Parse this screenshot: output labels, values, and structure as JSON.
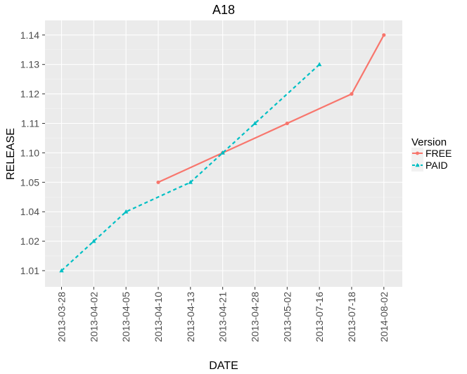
{
  "chart_data": {
    "type": "line",
    "title": "A18",
    "xlabel": "DATE",
    "ylabel": "RELEASE",
    "categories": [
      "2013-03-28",
      "2013-04-02",
      "2013-04-05",
      "2013-04-10",
      "2013-04-13",
      "2013-04-21",
      "2013-04-28",
      "2013-05-02",
      "2013-07-16",
      "2013-07-18",
      "2014-08-02"
    ],
    "y_ticks": [
      "1.01",
      "1.02",
      "1.04",
      "1.05",
      "1.10",
      "1.11",
      "1.12",
      "1.13",
      "1.14"
    ],
    "legend": {
      "title": "Version",
      "placement": "right"
    },
    "grid": true,
    "series": [
      {
        "name": "FREE",
        "color": "#F8766D",
        "line_style": "solid",
        "marker": "circle",
        "points": [
          {
            "x": "2013-04-10",
            "y": "1.05"
          },
          {
            "x": "2013-04-21",
            "y": "1.10"
          },
          {
            "x": "2013-05-02",
            "y": "1.11"
          },
          {
            "x": "2013-07-18",
            "y": "1.12"
          },
          {
            "x": "2014-08-02",
            "y": "1.14"
          }
        ]
      },
      {
        "name": "PAID",
        "color": "#00BFC4",
        "line_style": "dashed",
        "marker": "triangle",
        "points": [
          {
            "x": "2013-03-28",
            "y": "1.01"
          },
          {
            "x": "2013-04-02",
            "y": "1.02"
          },
          {
            "x": "2013-04-05",
            "y": "1.04"
          },
          {
            "x": "2013-04-13",
            "y": "1.05"
          },
          {
            "x": "2013-04-21",
            "y": "1.10"
          },
          {
            "x": "2013-04-28",
            "y": "1.11"
          },
          {
            "x": "2013-07-16",
            "y": "1.13"
          }
        ]
      }
    ]
  }
}
